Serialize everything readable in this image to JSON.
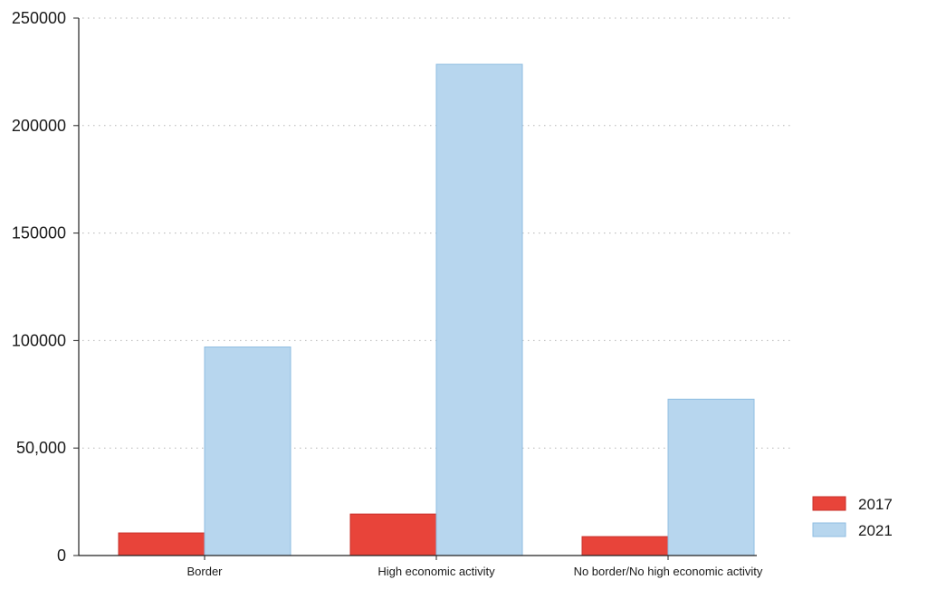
{
  "chart_data": {
    "type": "bar",
    "categories": [
      "Border",
      "High economic activity",
      "No border/No high economic activity"
    ],
    "series": [
      {
        "name": "2017",
        "values": [
          10500,
          19300,
          8800
        ],
        "color": "#e8443a",
        "stroke": "#c9302a"
      },
      {
        "name": "2021",
        "values": [
          97000,
          228500,
          72700
        ],
        "color": "#b7d6ee",
        "stroke": "#8fbde2"
      }
    ],
    "ylim": [
      0,
      250000
    ],
    "yticks": [
      {
        "value": 0,
        "label": "0"
      },
      {
        "value": 50000,
        "label": "50,000"
      },
      {
        "value": 100000,
        "label": "100000"
      },
      {
        "value": 150000,
        "label": "150000"
      },
      {
        "value": 200000,
        "label": "200000"
      },
      {
        "value": 250000,
        "label": "250000"
      }
    ],
    "grid": true,
    "legend_position": "bottom-right",
    "title": "",
    "xlabel": "",
    "ylabel": ""
  }
}
